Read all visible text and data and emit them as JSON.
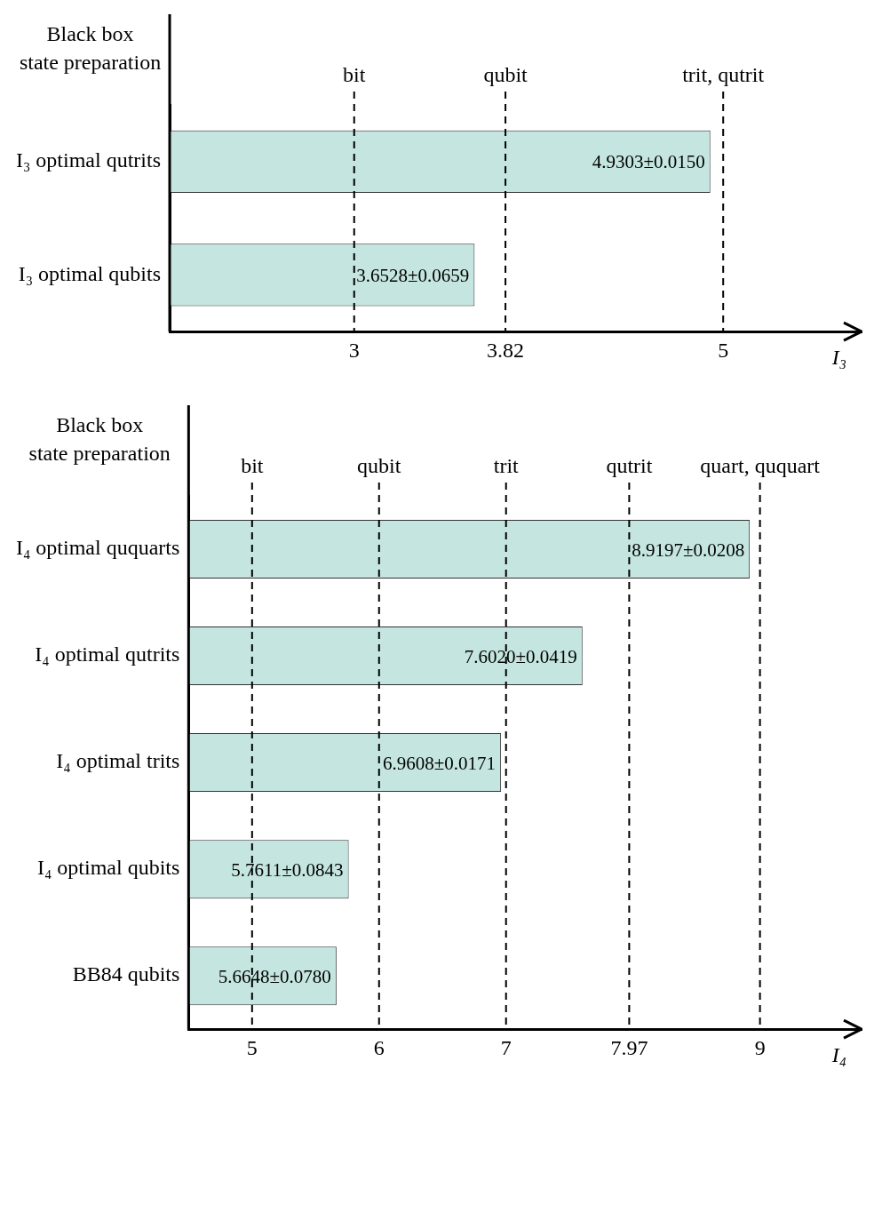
{
  "chart_data": [
    {
      "type": "bar",
      "orientation": "horizontal",
      "ylabel": "Black box\nstate preparation",
      "xlabel": "I₃",
      "categories": [
        "I₃ optimal qutrits",
        "I₃ optimal qubits"
      ],
      "values": [
        4.9303,
        3.6528
      ],
      "value_labels": [
        "4.9303±0.0150",
        "3.6528±0.0659"
      ],
      "color": "#c5e6e0",
      "xlim": [
        2,
        5.75
      ],
      "xticks": [
        3,
        3.82,
        5
      ],
      "grid": false,
      "legend": false,
      "ref_lines": [
        {
          "axis": "x",
          "value": 3,
          "label": "bit",
          "line_style": "dashed",
          "color": "#000000"
        },
        {
          "axis": "x",
          "value": 3.82,
          "label": "qubit",
          "line_style": "dashed",
          "color": "#000000"
        },
        {
          "axis": "x",
          "value": 5,
          "label": "trit, qutrit",
          "line_style": "dashed",
          "color": "#000000"
        }
      ]
    },
    {
      "type": "bar",
      "orientation": "horizontal",
      "ylabel": "Black box\nstate preparation",
      "xlabel": "I₄",
      "categories": [
        "I₄ optimal ququarts",
        "I₄ optimal qutrits",
        "I₄ optimal trits",
        "I₄ optimal qubits",
        "BB84 qubits"
      ],
      "values": [
        8.9197,
        7.602,
        6.9608,
        5.7611,
        5.6648
      ],
      "value_labels": [
        "8.9197±0.0208",
        "7.6020±0.0419",
        "6.9608±0.0171",
        "5.7611±0.0843",
        "5.6648±0.0780"
      ],
      "color": "#c5e6e0",
      "xlim": [
        4.5,
        9.8
      ],
      "xticks": [
        5,
        6,
        7,
        7.97,
        9
      ],
      "grid": false,
      "legend": false,
      "ref_lines": [
        {
          "axis": "x",
          "value": 5,
          "label": "bit",
          "line_style": "dashed",
          "color": "#000000"
        },
        {
          "axis": "x",
          "value": 6,
          "label": "qubit",
          "line_style": "dashed",
          "color": "#000000"
        },
        {
          "axis": "x",
          "value": 7,
          "label": "trit",
          "line_style": "dashed",
          "color": "#000000"
        },
        {
          "axis": "x",
          "value": 7.97,
          "label": "qutrit",
          "line_style": "dashed",
          "color": "#000000"
        },
        {
          "axis": "x",
          "value": 9,
          "label": "quart, ququart",
          "line_style": "dashed",
          "color": "#000000"
        }
      ]
    }
  ]
}
